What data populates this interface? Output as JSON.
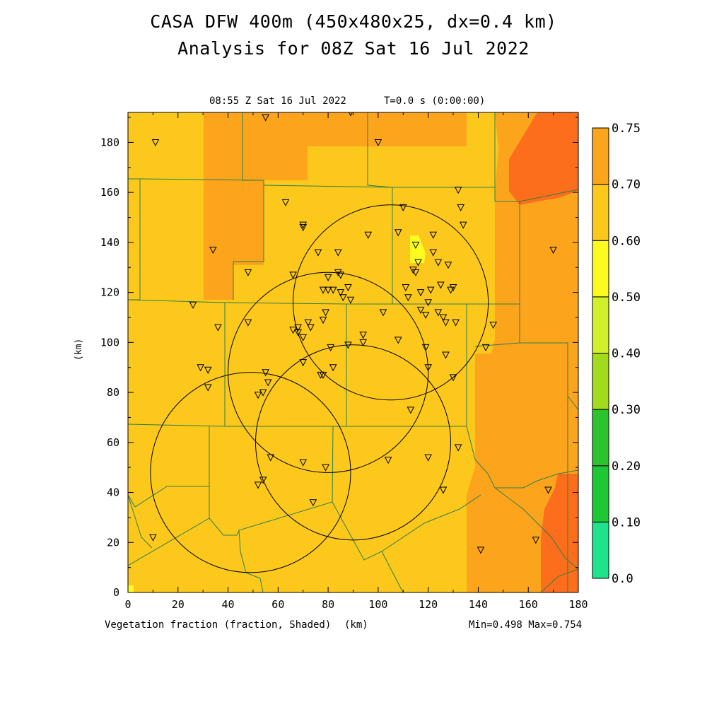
{
  "header": {
    "title_line1": "CASA DFW 400m (450x480x25, dx=0.4 km)",
    "title_line2": "Analysis for 08Z Sat 16 Jul 2022",
    "timestamp": "08:55 Z Sat 16 Jul 2022",
    "sim_time": "T=0.0 s (0:00:00)"
  },
  "footer": {
    "field_label": "Vegetation fraction (fraction, Shaded)",
    "x_unit": "(km)",
    "minmax": "Min=0.498 Max=0.754"
  },
  "axes": {
    "y_label": "(km)",
    "x_ticks": [
      "0",
      "20",
      "40",
      "60",
      "80",
      "100",
      "120",
      "140",
      "160",
      "180"
    ],
    "y_ticks": [
      "0",
      "20",
      "40",
      "60",
      "80",
      "100",
      "120",
      "140",
      "160",
      "180"
    ],
    "x_range_km": [
      0,
      180
    ],
    "y_range_km": [
      0,
      192
    ]
  },
  "colorbar": {
    "levels": [
      "0.0",
      "0.10",
      "0.20",
      "0.30",
      "0.40",
      "0.50",
      "0.60",
      "0.70",
      "0.75"
    ],
    "colors": [
      "#1ee38a",
      "#1ec832",
      "#2cc42c",
      "#a2da1c",
      "#d2f02a",
      "#fbfb20",
      "#fcc81c",
      "#fca51c",
      "#fc6e1c"
    ]
  },
  "colors": {
    "field_base": "#fcc81c",
    "field_orange": "#fca51c",
    "field_darkorange": "#fc6e1c",
    "field_yellow": "#fbfb20",
    "county_lines": "#2f7f4a",
    "radar_rings": "#000000",
    "station_marker": "#000000"
  },
  "radars_km": [
    {
      "x": 105,
      "y": 116,
      "r_km": 39
    },
    {
      "x": 80,
      "y": 88,
      "r_km": 40
    },
    {
      "x": 90,
      "y": 60,
      "r_km": 39
    },
    {
      "x": 49,
      "y": 48,
      "r_km": 40
    }
  ],
  "stations_km": [
    [
      11,
      180
    ],
    [
      55,
      190
    ],
    [
      89,
      192
    ],
    [
      100,
      180
    ],
    [
      63,
      156
    ],
    [
      132,
      161
    ],
    [
      133,
      154
    ],
    [
      134,
      147
    ],
    [
      34,
      137
    ],
    [
      70,
      147
    ],
    [
      70,
      146
    ],
    [
      76,
      136
    ],
    [
      84,
      136
    ],
    [
      96,
      143
    ],
    [
      108,
      144
    ],
    [
      110,
      154
    ],
    [
      115,
      139
    ],
    [
      116,
      132
    ],
    [
      122,
      143
    ],
    [
      122,
      136
    ],
    [
      124,
      132
    ],
    [
      128,
      131
    ],
    [
      48,
      128
    ],
    [
      66,
      127
    ],
    [
      80,
      126
    ],
    [
      84,
      128
    ],
    [
      85,
      127
    ],
    [
      114,
      129
    ],
    [
      115,
      128
    ],
    [
      117,
      120
    ],
    [
      120,
      116
    ],
    [
      121,
      121
    ],
    [
      125,
      123
    ],
    [
      129,
      121
    ],
    [
      130,
      122
    ],
    [
      26,
      115
    ],
    [
      36,
      106
    ],
    [
      48,
      108
    ],
    [
      66,
      105
    ],
    [
      68,
      106
    ],
    [
      72,
      108
    ],
    [
      78,
      109
    ],
    [
      79,
      112
    ],
    [
      73,
      106
    ],
    [
      78,
      121
    ],
    [
      80,
      121
    ],
    [
      82,
      121
    ],
    [
      85,
      120
    ],
    [
      86,
      118
    ],
    [
      89,
      117
    ],
    [
      88,
      122
    ],
    [
      111,
      122
    ],
    [
      112,
      118
    ],
    [
      117,
      113
    ],
    [
      119,
      111
    ],
    [
      124,
      112
    ],
    [
      126,
      110
    ],
    [
      127,
      108
    ],
    [
      131,
      108
    ],
    [
      68,
      104
    ],
    [
      70,
      102
    ],
    [
      81,
      98
    ],
    [
      88,
      99
    ],
    [
      94,
      103
    ],
    [
      94,
      100
    ],
    [
      102,
      112
    ],
    [
      108,
      101
    ],
    [
      119,
      98
    ],
    [
      127,
      95
    ],
    [
      130,
      86
    ],
    [
      143,
      98
    ],
    [
      146,
      107
    ],
    [
      29,
      90
    ],
    [
      32,
      89
    ],
    [
      32,
      82
    ],
    [
      55,
      88
    ],
    [
      56,
      84
    ],
    [
      52,
      79
    ],
    [
      54,
      80
    ],
    [
      70,
      92
    ],
    [
      77,
      87
    ],
    [
      78,
      87
    ],
    [
      82,
      90
    ],
    [
      120,
      90
    ],
    [
      113,
      73
    ],
    [
      57,
      54
    ],
    [
      70,
      52
    ],
    [
      79,
      50
    ],
    [
      104,
      53
    ],
    [
      120,
      54
    ],
    [
      132,
      58
    ],
    [
      52,
      43
    ],
    [
      54,
      45
    ],
    [
      74,
      36
    ],
    [
      126,
      41
    ],
    [
      10,
      22
    ],
    [
      141,
      17
    ],
    [
      163,
      21
    ],
    [
      168,
      41
    ],
    [
      170,
      137
    ]
  ]
}
